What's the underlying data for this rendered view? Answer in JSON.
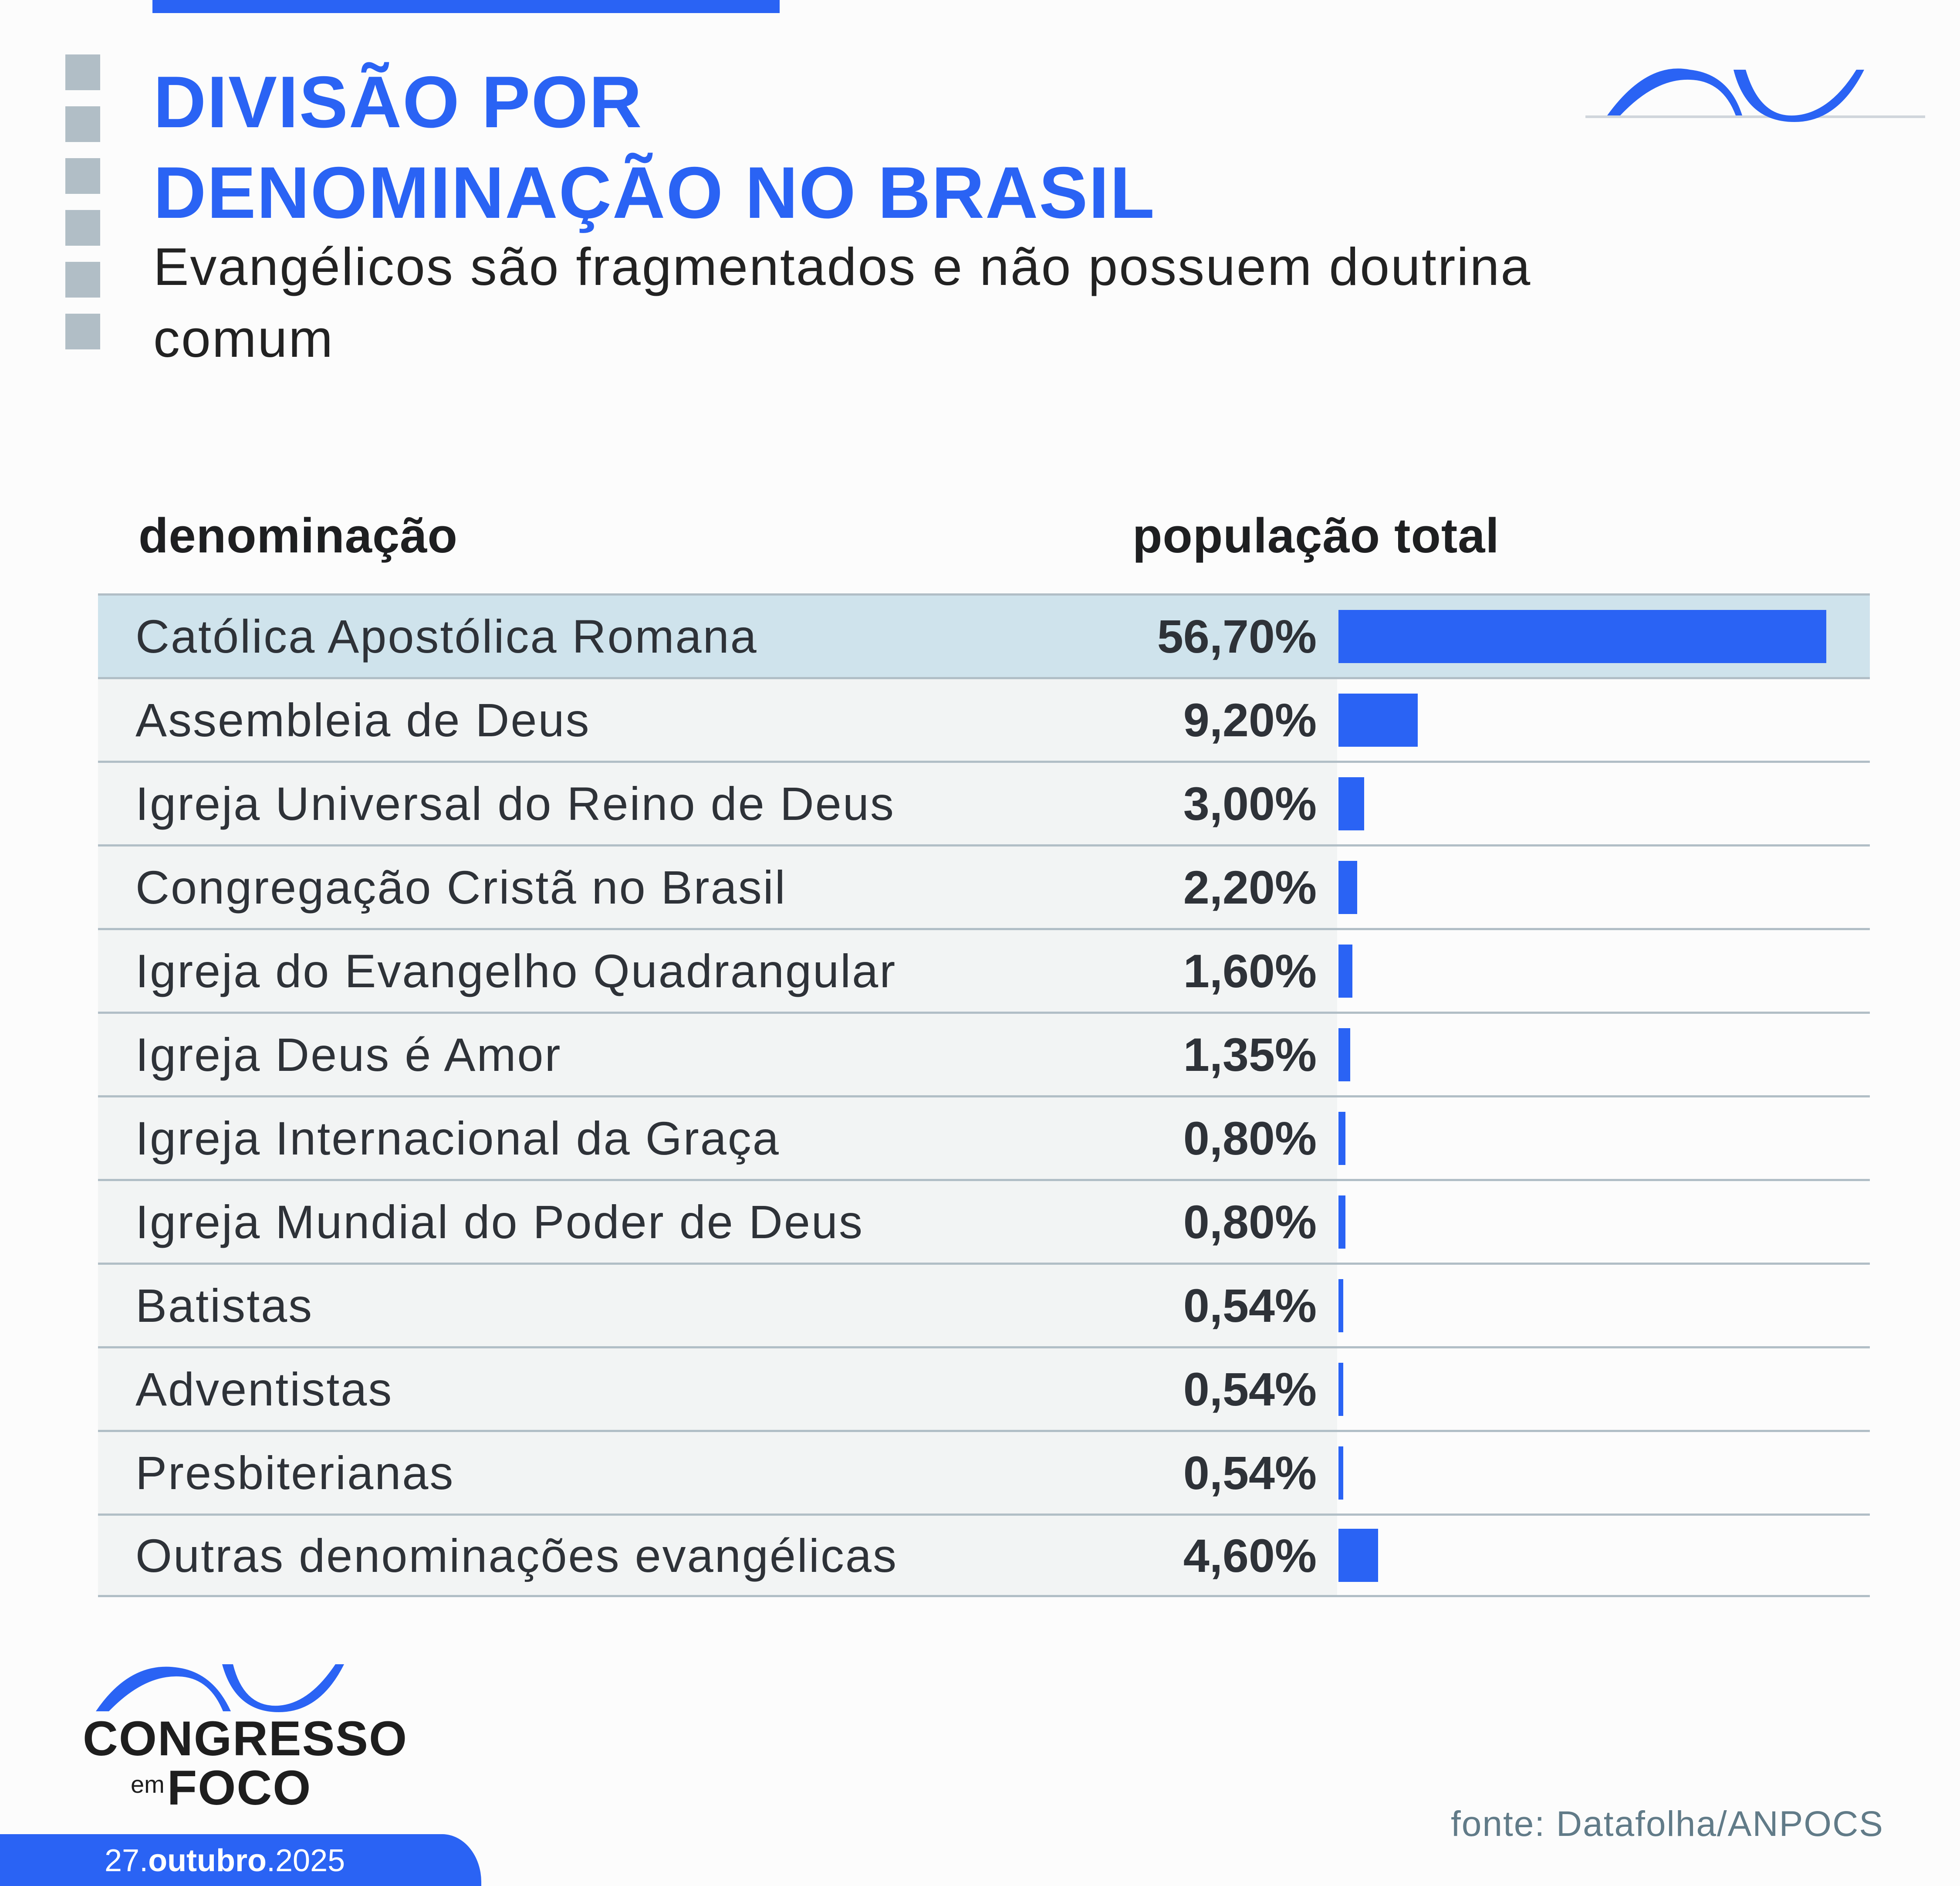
{
  "header": {
    "title_line1": "DIVISÃO POR",
    "title_line2": "DENOMINAÇÃO NO BRASIL",
    "subtitle": "Evangélicos são fragmentados e não possuem doutrina comum"
  },
  "table": {
    "col_name": "denominação",
    "col_value": "população total",
    "rows": [
      {
        "label": "Católica Apostólica Romana",
        "value": "56,70%"
      },
      {
        "label": "Assembleia de Deus",
        "value": "9,20%"
      },
      {
        "label": "Igreja Universal do Reino de Deus",
        "value": "3,00%"
      },
      {
        "label": "Congregação Cristã no Brasil",
        "value": "2,20%"
      },
      {
        "label": "Igreja do Evangelho Quadrangular",
        "value": "1,60%"
      },
      {
        "label": "Igreja Deus é Amor",
        "value": "1,35%"
      },
      {
        "label": "Igreja Internacional da Graça",
        "value": "0,80%"
      },
      {
        "label": "Igreja Mundial do Poder de Deus",
        "value": "0,80%"
      },
      {
        "label": "Batistas",
        "value": "0,54%"
      },
      {
        "label": "Adventistas",
        "value": "0,54%"
      },
      {
        "label": "Presbiterianas",
        "value": "0,54%"
      },
      {
        "label": "Outras denominações evangélicas",
        "value": "4,60%"
      }
    ]
  },
  "footer": {
    "brand_line1": "CONGRESSO",
    "brand_em": "em",
    "brand_line2": "FOCO",
    "date_day": "27.",
    "date_month": "outubro",
    "date_year": ".2025",
    "source": "fonte: Datafolha/ANPOCS"
  },
  "colors": {
    "accent": "#2a63f4",
    "highlight_row": "#cfe3ec",
    "row_bg": "#f2f4f4",
    "divider": "#b1bec6",
    "source_text": "#617b88"
  },
  "chart_data": {
    "type": "bar",
    "orientation": "horizontal",
    "title": "DIVISÃO POR DENOMINAÇÃO NO BRASIL",
    "subtitle": "Evangélicos são fragmentados e não possuem doutrina comum",
    "xlabel": "população total",
    "ylabel": "denominação",
    "unit": "%",
    "categories": [
      "Católica Apostólica Romana",
      "Assembleia de Deus",
      "Igreja Universal do Reino de Deus",
      "Congregação Cristã no Brasil",
      "Igreja do Evangelho Quadrangular",
      "Igreja Deus é Amor",
      "Igreja Internacional da Graça",
      "Igreja Mundial do Poder de Deus",
      "Batistas",
      "Adventistas",
      "Presbiterianas",
      "Outras denominações evangélicas"
    ],
    "values": [
      56.7,
      9.2,
      3.0,
      2.2,
      1.6,
      1.35,
      0.8,
      0.8,
      0.54,
      0.54,
      0.54,
      4.6
    ],
    "grid": false,
    "legend": null,
    "source": "fonte: Datafolha/ANPOCS"
  }
}
